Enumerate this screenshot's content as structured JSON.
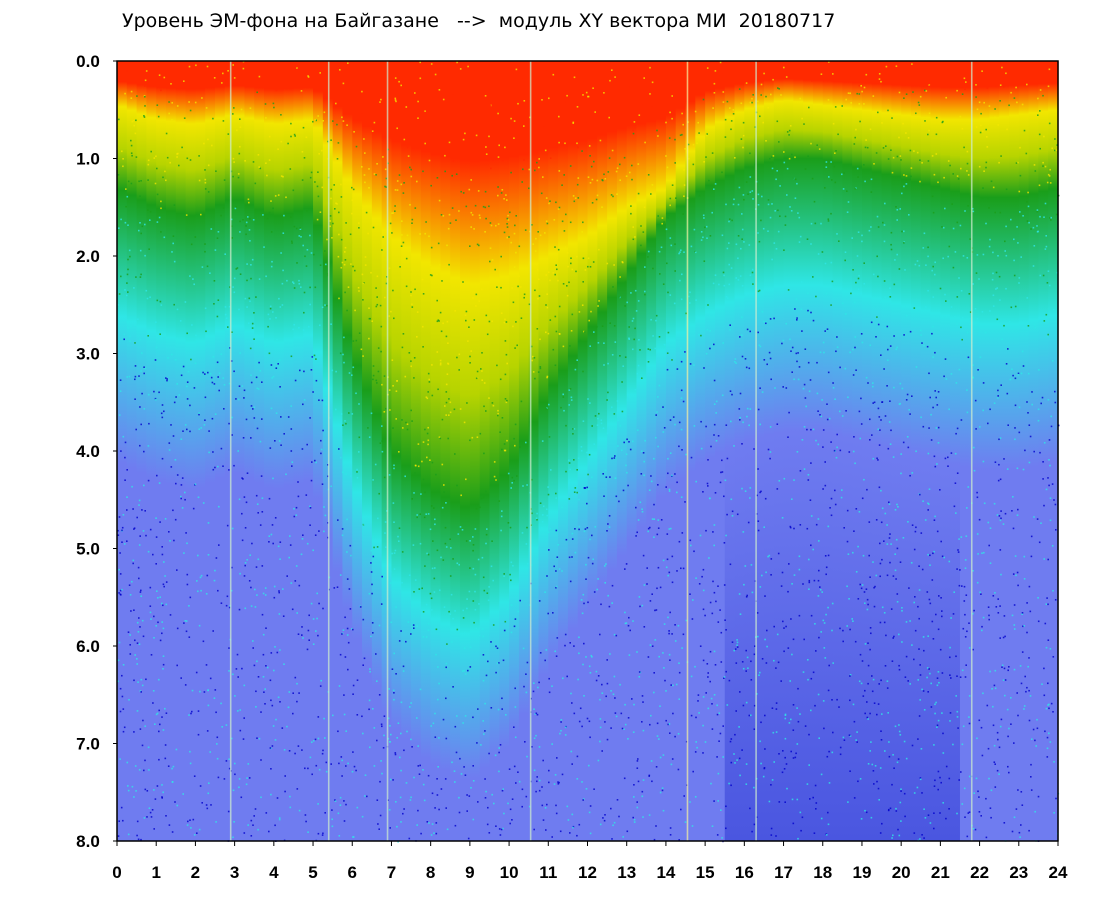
{
  "chart_data": {
    "type": "heatmap",
    "title": "Уровень ЭМ-фона на Байгазане   -->  модуль XY вектора МИ  20180717",
    "xlabel": "",
    "ylabel": "",
    "xlim": [
      0,
      24
    ],
    "ylim": [
      8.0,
      0.0
    ],
    "y_axis_inverted": true,
    "grid": false,
    "x_ticks": [
      "0",
      "1",
      "2",
      "3",
      "4",
      "5",
      "6",
      "7",
      "8",
      "9",
      "10",
      "11",
      "12",
      "13",
      "14",
      "15",
      "16",
      "17",
      "18",
      "19",
      "20",
      "21",
      "22",
      "23",
      "24"
    ],
    "y_ticks": [
      "0.0",
      "1.0",
      "2.0",
      "3.0",
      "4.0",
      "5.0",
      "6.0",
      "7.0",
      "8.0"
    ],
    "color_scale": [
      "#0000cc",
      "#6f7cf0",
      "#2fe6e6",
      "#1a9e1a",
      "#f2e600",
      "#ff2a00"
    ],
    "hourly_profile": {
      "hours": [
        0,
        1,
        2,
        3,
        4,
        5,
        6,
        7,
        8,
        9,
        10,
        11,
        12,
        13,
        14,
        15,
        16,
        17,
        18,
        19,
        20,
        21,
        22,
        23,
        24
      ],
      "yellow_zone_depth": [
        0.45,
        0.6,
        0.65,
        0.55,
        0.65,
        0.6,
        1.3,
        1.8,
        2.1,
        2.3,
        2.2,
        2.0,
        1.8,
        1.5,
        1.3,
        0.7,
        0.5,
        0.4,
        0.45,
        0.5,
        0.55,
        0.6,
        0.6,
        0.55,
        0.5
      ],
      "green_zone_depth": [
        1.3,
        1.5,
        1.6,
        1.4,
        1.6,
        1.5,
        3.0,
        4.0,
        4.4,
        4.6,
        4.2,
        3.4,
        2.8,
        2.2,
        1.6,
        1.3,
        1.1,
        1.0,
        1.0,
        1.1,
        1.2,
        1.3,
        1.4,
        1.4,
        1.3
      ]
    },
    "vertical_streaks": [
      2.9,
      5.4,
      6.9,
      10.55,
      14.55,
      16.3,
      21.8
    ]
  }
}
